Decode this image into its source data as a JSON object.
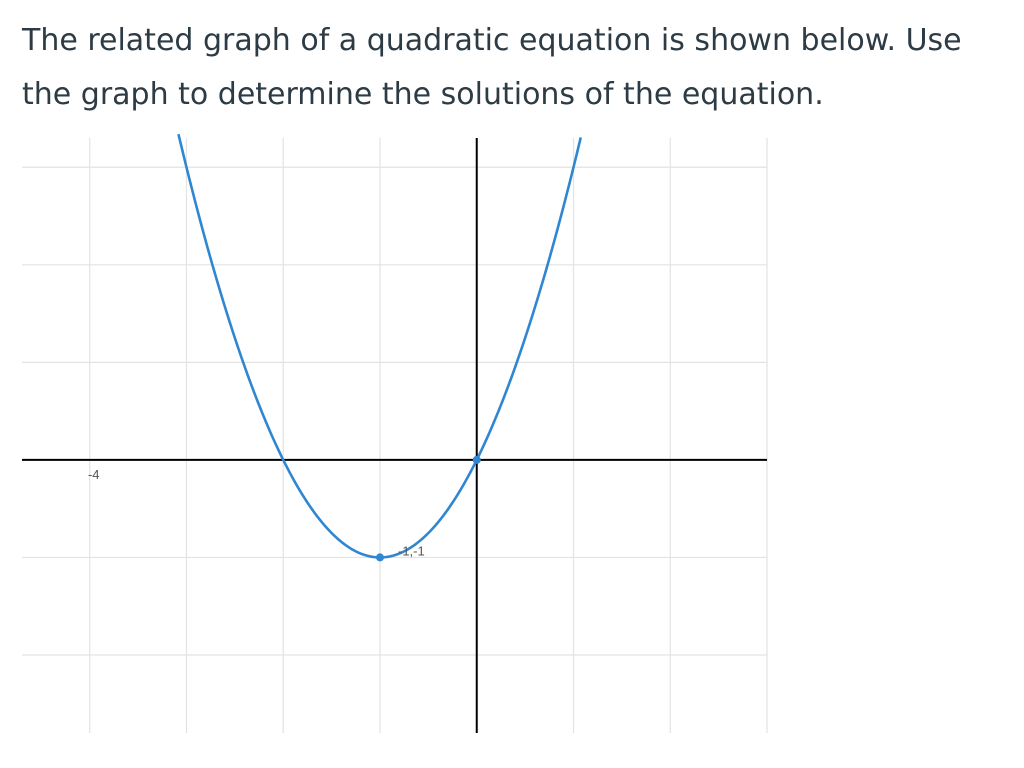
{
  "question": {
    "text": "The related graph of a quadratic equation is shown below.  Use the graph to determine the solutions of the equation."
  },
  "chart_data": {
    "type": "line",
    "function": {
      "a": 1,
      "b": 2,
      "c": 0
    },
    "xlim": [
      -4.7,
      3
    ],
    "ylim": [
      -2.8,
      3.3
    ],
    "grid": true,
    "tick_labels": [
      {
        "axis": "x",
        "value": -4,
        "label": "-4"
      }
    ],
    "points": [
      {
        "x": -1,
        "y": -1,
        "label": "-1,-1"
      },
      {
        "x": 0,
        "y": 0,
        "label": ""
      }
    ],
    "colors": {
      "curve": "#2f86d1",
      "axis": "#000000",
      "grid": "#e3e3e3"
    }
  }
}
